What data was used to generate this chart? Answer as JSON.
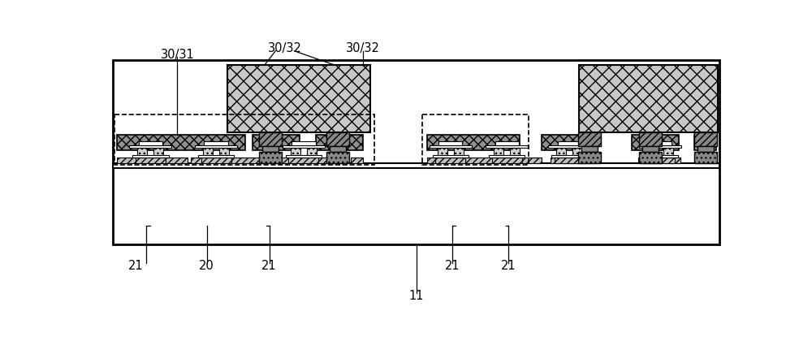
{
  "fig_width": 10.0,
  "fig_height": 4.2,
  "dpi": 100,
  "bg_color": "#ffffff",
  "black": "#000000",
  "gray_dark": "#888888",
  "gray_med": "#aaaaaa",
  "gray_light": "#cccccc",
  "label_fontsize": 10.5,
  "labels": {
    "30_31": "30/31",
    "30_32_left": "30/32",
    "30_32_right": "30/32",
    "11": "11",
    "21_a": "21",
    "20": "20",
    "21_b": "21",
    "21_c": "21",
    "21_d": "21"
  }
}
